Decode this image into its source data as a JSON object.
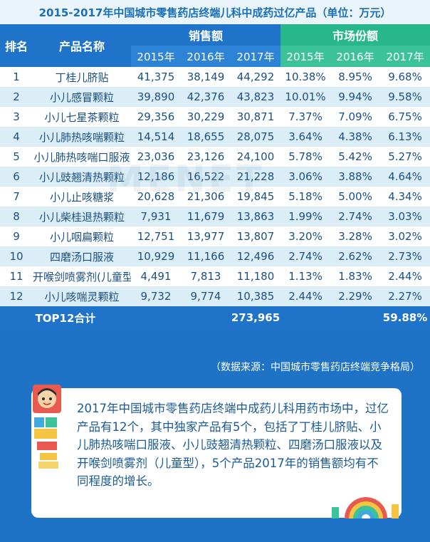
{
  "title": "2015-2017年中国城市零售药店终端儿科中成药过亿产品（单位：万元）",
  "headers": {
    "rank": "排名",
    "name": "产品名称",
    "sales": "销售额",
    "share": "市场份额",
    "years": [
      "2015年",
      "2016年",
      "2017年"
    ]
  },
  "rows": [
    {
      "rank": "1",
      "name": "丁桂儿脐贴",
      "s2015": "41,375",
      "s2016": "38,149",
      "s2017": "44,292",
      "m2015": "10.38%",
      "m2016": "8.95%",
      "m2017": "9.68%"
    },
    {
      "rank": "2",
      "name": "小儿感冒颗粒",
      "s2015": "39,890",
      "s2016": "42,376",
      "s2017": "43,823",
      "m2015": "10.01%",
      "m2016": "9.94%",
      "m2017": "9.58%"
    },
    {
      "rank": "3",
      "name": "小儿七星茶颗粒",
      "s2015": "29,356",
      "s2016": "30,229",
      "s2017": "30,871",
      "m2015": "7.37%",
      "m2016": "7.09%",
      "m2017": "6.75%"
    },
    {
      "rank": "4",
      "name": "小儿肺热咳喘颗粒",
      "s2015": "14,514",
      "s2016": "18,655",
      "s2017": "28,075",
      "m2015": "3.64%",
      "m2016": "4.38%",
      "m2017": "6.13%"
    },
    {
      "rank": "5",
      "name": "小儿肺热咳喘口服液",
      "s2015": "23,036",
      "s2016": "23,126",
      "s2017": "24,100",
      "m2015": "5.78%",
      "m2016": "5.42%",
      "m2017": "5.27%"
    },
    {
      "rank": "6",
      "name": "小儿豉翘清热颗粒",
      "s2015": "12,186",
      "s2016": "16,522",
      "s2017": "21,228",
      "m2015": "3.06%",
      "m2016": "3.88%",
      "m2017": "4.64%"
    },
    {
      "rank": "7",
      "name": "小儿止咳糖浆",
      "s2015": "20,628",
      "s2016": "21,306",
      "s2017": "19,845",
      "m2015": "5.18%",
      "m2016": "5.00%",
      "m2017": "4.34%"
    },
    {
      "rank": "8",
      "name": "小儿柴桂退热颗粒",
      "s2015": "7,931",
      "s2016": "11,679",
      "s2017": "13,863",
      "m2015": "1.99%",
      "m2016": "2.74%",
      "m2017": "3.03%"
    },
    {
      "rank": "9",
      "name": "小儿咽扁颗粒",
      "s2015": "12,751",
      "s2016": "13,977",
      "s2017": "13,807",
      "m2015": "3.20%",
      "m2016": "3.28%",
      "m2017": "3.02%"
    },
    {
      "rank": "10",
      "name": "四磨汤口服液",
      "s2015": "10,929",
      "s2016": "11,166",
      "s2017": "12,496",
      "m2015": "2.74%",
      "m2016": "2.62%",
      "m2017": "2.73%"
    },
    {
      "rank": "11",
      "name": "开喉剑喷雾剂(儿童型)",
      "s2015": "4,491",
      "s2016": "7,813",
      "s2017": "11,180",
      "m2015": "1.13%",
      "m2016": "1.83%",
      "m2017": "2.44%"
    },
    {
      "rank": "12",
      "name": "小儿咳喘灵颗粒",
      "s2015": "9,732",
      "s2016": "9,774",
      "s2017": "10,385",
      "m2015": "2.44%",
      "m2016": "2.29%",
      "m2017": "2.27%"
    }
  ],
  "total": {
    "label": "TOP12合计",
    "sales": "273,965",
    "share": "59.88%"
  },
  "watermark": "MENET",
  "source": "（数据来源：中国城市零售药店终端竞争格局）",
  "summary": "2017年中国城市零售药店终端中成药儿科用药市场中，过亿产品有12个，其中独家产品有5个，包括了丁桂儿脐贴、小儿肺热咳喘口服液、小儿豉翘清热颗粒、四磨汤口服液以及开喉剑喷雾剂（儿童型），5个产品2017年的销售额均有不同程度的增长。",
  "colors": {
    "blue": "#1f73c9",
    "green": "#28b78a",
    "light_row": "#dbeef8",
    "text_blue": "#1a5a96"
  }
}
